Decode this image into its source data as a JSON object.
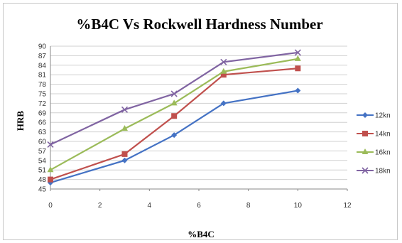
{
  "chart_data": {
    "type": "line",
    "title": "%B4C Vs Rockwell Hardness Number",
    "xlabel": "%B4C",
    "ylabel": "HRB",
    "xlim": [
      0,
      12
    ],
    "ylim": [
      45,
      90
    ],
    "x_ticks": [
      0,
      2,
      4,
      6,
      8,
      10,
      12
    ],
    "y_ticks": [
      45,
      48,
      51,
      54,
      57,
      60,
      63,
      66,
      69,
      72,
      75,
      78,
      81,
      84,
      87,
      90
    ],
    "grid": "horizontal",
    "legend": "right",
    "x": [
      0,
      3,
      5,
      7,
      10
    ],
    "series": [
      {
        "name": "12kn",
        "color": "#4472c4",
        "marker": "diamond",
        "values": [
          47,
          54,
          62,
          72,
          76
        ]
      },
      {
        "name": "14kn",
        "color": "#c0504d",
        "marker": "square",
        "values": [
          48,
          56,
          68,
          81,
          83
        ]
      },
      {
        "name": "16kn",
        "color": "#9bbb59",
        "marker": "triangle",
        "values": [
          51,
          64,
          72,
          82,
          86
        ]
      },
      {
        "name": "18kn",
        "color": "#8064a2",
        "marker": "x",
        "values": [
          59,
          70,
          75,
          85,
          88
        ]
      }
    ]
  }
}
